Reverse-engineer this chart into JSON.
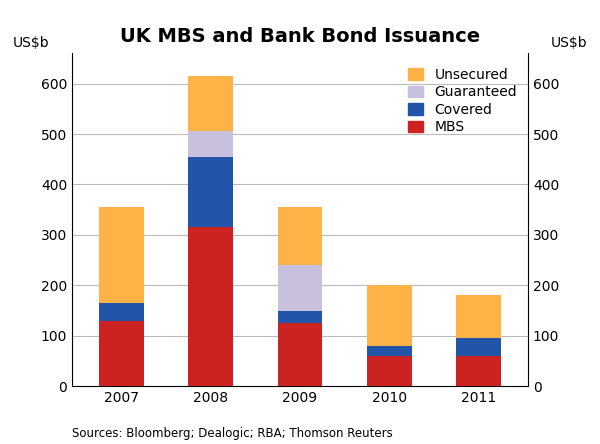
{
  "title": "UK MBS and Bank Bond Issuance",
  "ylabel_left": "US$b",
  "ylabel_right": "US$b",
  "source": "Sources: Bloomberg; Dealogic; RBA; Thomson Reuters",
  "categories": [
    "2007",
    "2008",
    "2009",
    "2010",
    "2011"
  ],
  "mbs": [
    130,
    315,
    125,
    60,
    60
  ],
  "covered": [
    35,
    140,
    25,
    20,
    35
  ],
  "guaranteed": [
    0,
    50,
    90,
    0,
    0
  ],
  "unsecured": [
    190,
    110,
    115,
    120,
    85
  ],
  "colors": {
    "mbs": "#cc2222",
    "covered": "#2255aa",
    "guaranteed": "#c8c0dc",
    "unsecured": "#ffb347"
  },
  "ylim": [
    0,
    660
  ],
  "yticks": [
    0,
    100,
    200,
    300,
    400,
    500,
    600
  ],
  "bar_width": 0.5,
  "background_color": "#ffffff",
  "grid_color": "#bbbbbb",
  "title_fontsize": 14,
  "label_fontsize": 10,
  "tick_fontsize": 10,
  "source_fontsize": 8.5,
  "legend_fontsize": 10
}
